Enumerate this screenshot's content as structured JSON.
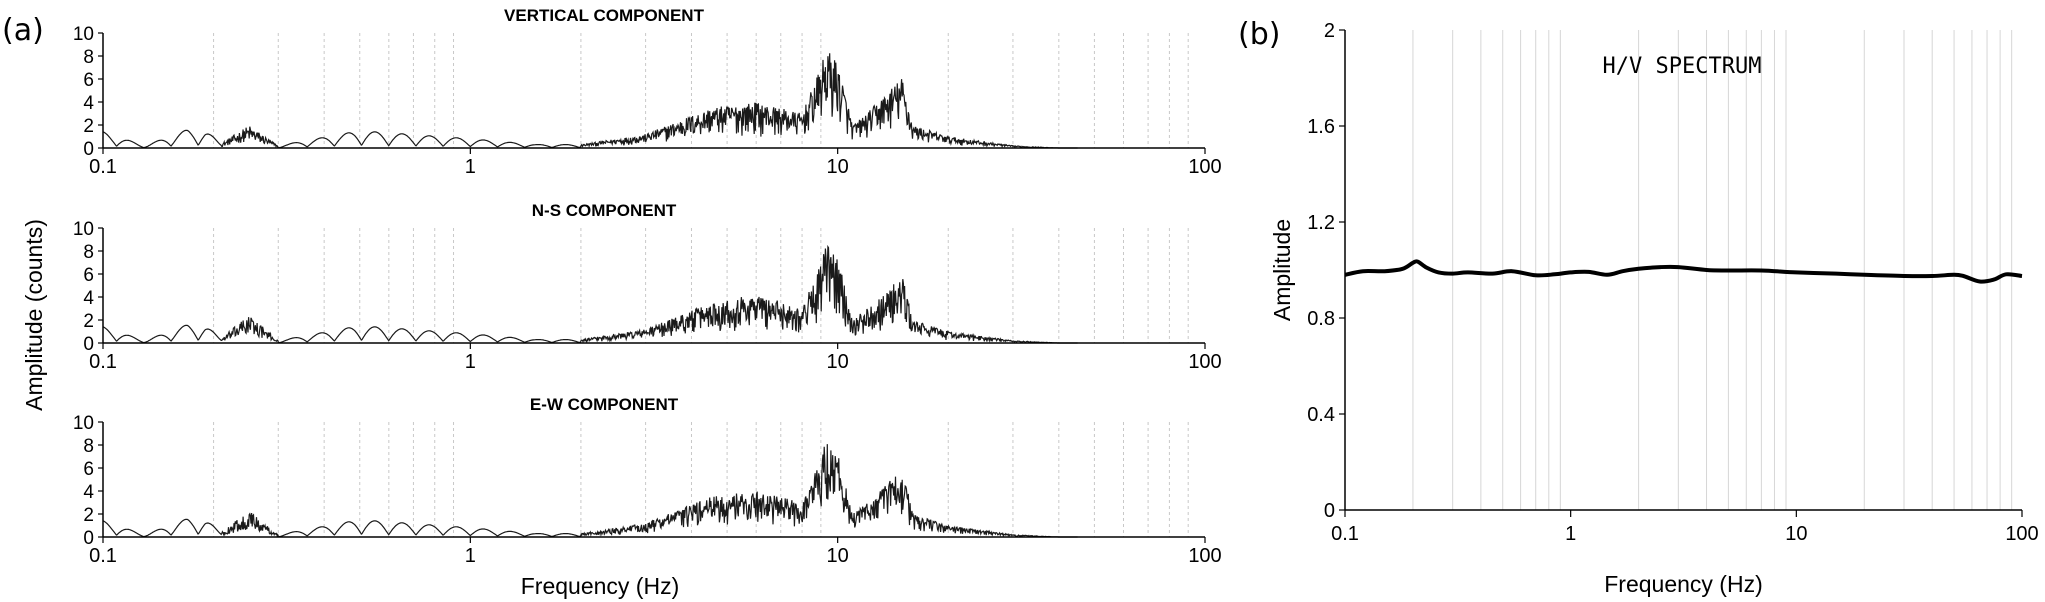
{
  "panel_a": {
    "letter": "(a)",
    "ylabel": "Amplitude (counts)",
    "xlabel": "Frequency (Hz)"
  },
  "panel_b": {
    "letter": "(b)"
  },
  "chart_data": [
    {
      "type": "line",
      "title": "VERTICAL COMPONENT",
      "x_scale": "log",
      "xlim": [
        0.1,
        100
      ],
      "ylim": [
        0,
        10
      ],
      "x_ticks": [
        "0.1",
        "1",
        "10",
        "100"
      ],
      "y_ticks": [
        "0",
        "2",
        "4",
        "6",
        "8",
        "10"
      ],
      "grid": "vertical minor lines, dashed",
      "line_color": "#1a1a1a",
      "x": [
        0.1,
        0.13,
        0.17,
        0.19,
        0.21,
        0.25,
        0.3,
        0.5,
        1,
        1.5,
        2,
        3,
        4.5,
        6,
        8,
        9,
        9.3,
        10,
        11,
        12,
        13,
        15,
        16,
        20,
        30,
        40
      ],
      "y": [
        1.4,
        0.2,
        1.6,
        1.5,
        0.4,
        2.0,
        0.2,
        1.5,
        0.8,
        0.3,
        0.3,
        1.2,
        3.5,
        4.0,
        3.0,
        7.0,
        8.7,
        7.5,
        2.0,
        3.0,
        4.2,
        6.2,
        2.0,
        1.0,
        0.2,
        0.0
      ]
    },
    {
      "type": "line",
      "title": "N-S COMPONENT",
      "x_scale": "log",
      "xlim": [
        0.1,
        100
      ],
      "ylim": [
        0,
        10
      ],
      "x_ticks": [
        "0.1",
        "1",
        "10",
        "100"
      ],
      "y_ticks": [
        "0",
        "2",
        "4",
        "6",
        "8",
        "10"
      ],
      "grid": "vertical minor lines, dashed",
      "line_color": "#1a1a1a",
      "x": [
        0.1,
        0.13,
        0.17,
        0.19,
        0.21,
        0.25,
        0.3,
        0.5,
        1,
        1.5,
        2,
        3,
        4.5,
        6,
        8,
        9,
        9.3,
        10,
        11,
        12,
        13,
        15,
        16,
        20,
        30,
        40
      ],
      "y": [
        1.4,
        0.2,
        1.6,
        1.5,
        0.4,
        2.5,
        0.2,
        1.5,
        0.8,
        0.3,
        0.3,
        1.2,
        3.5,
        4.3,
        3.0,
        7.0,
        8.7,
        7.5,
        2.0,
        3.0,
        4.0,
        5.8,
        2.0,
        1.0,
        0.2,
        0.0
      ]
    },
    {
      "type": "line",
      "title": "E-W COMPONENT",
      "x_scale": "log",
      "xlim": [
        0.1,
        100
      ],
      "ylim": [
        0,
        10
      ],
      "x_ticks": [
        "0.1",
        "1",
        "10",
        "100"
      ],
      "y_ticks": [
        "0",
        "2",
        "4",
        "6",
        "8",
        "10"
      ],
      "grid": "vertical minor lines, dashed",
      "line_color": "#1a1a1a",
      "x": [
        0.1,
        0.13,
        0.17,
        0.19,
        0.21,
        0.25,
        0.3,
        0.5,
        1,
        1.5,
        2,
        3,
        4.5,
        6,
        8,
        9,
        9.3,
        10,
        11,
        12,
        13,
        15,
        16,
        20,
        30,
        40
      ],
      "y": [
        1.4,
        0.2,
        1.6,
        1.5,
        0.4,
        2.3,
        0.2,
        1.5,
        0.8,
        0.3,
        0.3,
        1.2,
        3.5,
        4.0,
        3.0,
        7.0,
        8.7,
        7.5,
        2.0,
        3.0,
        4.0,
        6.2,
        2.0,
        1.0,
        0.2,
        0.0
      ]
    },
    {
      "type": "line",
      "title": "H/V SPECTRUM",
      "x_scale": "log",
      "xlim": [
        0.1,
        100
      ],
      "ylim": [
        0,
        2
      ],
      "xlabel": "Frequency (Hz)",
      "ylabel": "Amplitude",
      "x_ticks": [
        "0.1",
        "1",
        "10",
        "100"
      ],
      "y_ticks": [
        "0",
        "0.4",
        "0.8",
        "1.2",
        "1.6",
        "2"
      ],
      "grid": "vertical minor lines",
      "line_color": "#000000",
      "x": [
        0.1,
        0.12,
        0.15,
        0.18,
        0.2,
        0.21,
        0.23,
        0.26,
        0.3,
        0.35,
        0.45,
        0.55,
        0.7,
        0.85,
        1.0,
        1.2,
        1.45,
        1.7,
        2.0,
        2.5,
        3.0,
        4.0,
        5.0,
        7.0,
        10,
        15,
        20,
        30,
        40,
        50,
        55,
        65,
        75,
        85,
        100
      ],
      "y": [
        0.98,
        0.995,
        0.995,
        1.005,
        1.03,
        1.035,
        1.01,
        0.99,
        0.985,
        0.99,
        0.985,
        0.995,
        0.978,
        0.982,
        0.99,
        0.992,
        0.98,
        0.995,
        1.005,
        1.012,
        1.012,
        1.0,
        0.998,
        0.998,
        0.99,
        0.985,
        0.98,
        0.975,
        0.975,
        0.98,
        0.975,
        0.952,
        0.96,
        0.982,
        0.975
      ]
    }
  ]
}
